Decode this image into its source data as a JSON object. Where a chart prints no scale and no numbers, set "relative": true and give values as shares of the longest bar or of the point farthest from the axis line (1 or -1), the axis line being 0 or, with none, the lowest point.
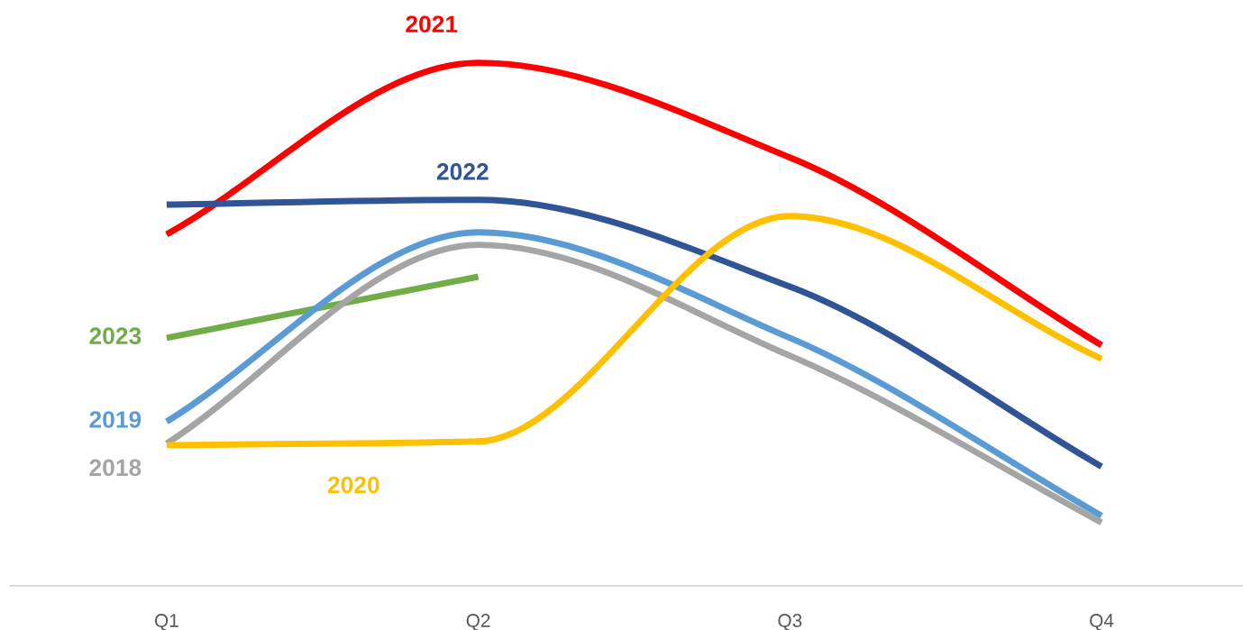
{
  "chart_data": {
    "type": "line",
    "relative": true,
    "categories": [
      "Q1",
      "Q2",
      "Q3",
      "Q4"
    ],
    "grid": false,
    "legend": false,
    "marker": "none",
    "line_style": "solid",
    "series": [
      {
        "name": "2021",
        "color": "#ff0000",
        "values": [
          0.672,
          1.0,
          0.819,
          0.46
        ]
      },
      {
        "name": "2022",
        "color": "#2f5597",
        "values": [
          0.729,
          0.738,
          0.572,
          0.228
        ]
      },
      {
        "name": "2023",
        "color": "#70ad47",
        "values": [
          0.474,
          0.591,
          null,
          null
        ]
      },
      {
        "name": "2019",
        "color": "#5b9bd5",
        "values": [
          0.314,
          0.676,
          0.474,
          0.134
        ]
      },
      {
        "name": "2018",
        "color": "#a5a5a5",
        "values": [
          0.272,
          0.652,
          0.44,
          0.121
        ]
      },
      {
        "name": "2020",
        "color": "#ffc000",
        "values": [
          0.269,
          0.276,
          0.707,
          0.434
        ]
      }
    ]
  }
}
